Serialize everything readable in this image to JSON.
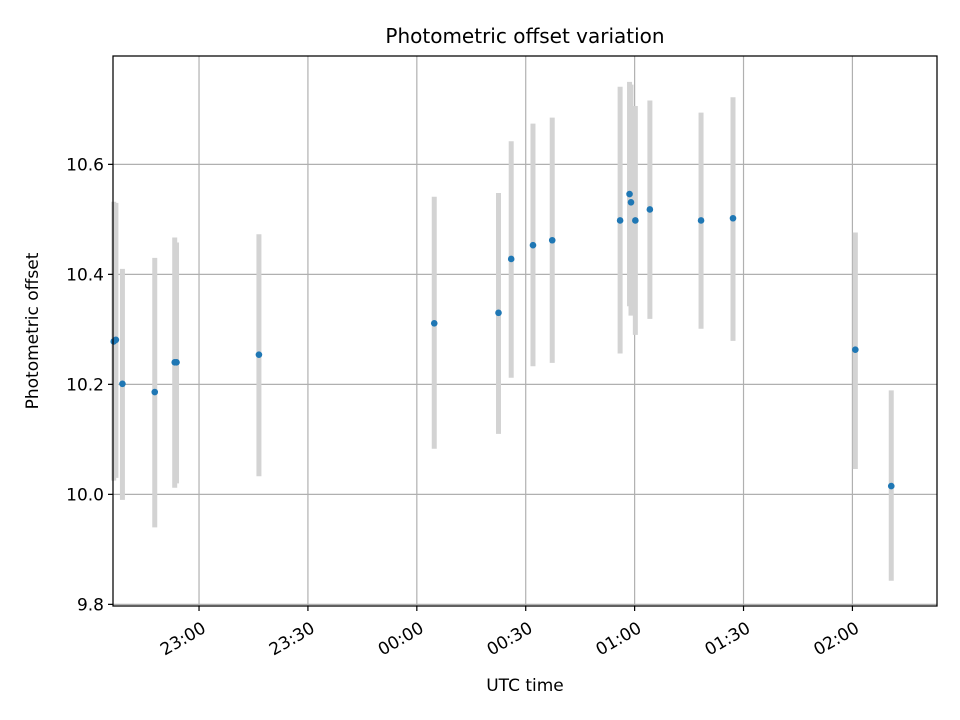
{
  "chart_data": {
    "type": "scatter",
    "title": "Photometric offset variation",
    "xlabel": "UTC time",
    "ylabel": "Photometric offset",
    "x_ticks": [
      {
        "value": 60,
        "label": "23:00"
      },
      {
        "value": 90,
        "label": "23:30"
      },
      {
        "value": 120,
        "label": "00:00"
      },
      {
        "value": 150,
        "label": "00:30"
      },
      {
        "value": 180,
        "label": "01:00"
      },
      {
        "value": 210,
        "label": "01:30"
      },
      {
        "value": 240,
        "label": "02:00"
      }
    ],
    "y_ticks": [
      {
        "value": 9.8,
        "label": "9.8"
      },
      {
        "value": 10.0,
        "label": "10.0"
      },
      {
        "value": 10.2,
        "label": "10.2"
      },
      {
        "value": 10.4,
        "label": "10.4"
      },
      {
        "value": 10.6,
        "label": "10.6"
      }
    ],
    "xlim": [
      36.3,
      263.3
    ],
    "ylim": [
      9.797,
      10.797
    ],
    "grid": true,
    "colors": {
      "point": "#1f77b4",
      "errorbar": "#d3d3d3",
      "grid": "#b0b0b0"
    },
    "points": [
      {
        "x": 36.5,
        "y": 10.278,
        "low": 10.025,
        "high": 10.532
      },
      {
        "x": 37.1,
        "y": 10.281,
        "low": 10.03,
        "high": 10.53
      },
      {
        "x": 38.9,
        "y": 10.201,
        "low": 9.99,
        "high": 10.41
      },
      {
        "x": 47.8,
        "y": 10.186,
        "low": 9.94,
        "high": 10.43
      },
      {
        "x": 53.3,
        "y": 10.24,
        "low": 10.012,
        "high": 10.467
      },
      {
        "x": 53.8,
        "y": 10.24,
        "low": 10.02,
        "high": 10.458
      },
      {
        "x": 76.5,
        "y": 10.254,
        "low": 10.033,
        "high": 10.473
      },
      {
        "x": 124.8,
        "y": 10.311,
        "low": 10.083,
        "high": 10.541
      },
      {
        "x": 142.5,
        "y": 10.33,
        "low": 10.11,
        "high": 10.548
      },
      {
        "x": 146.0,
        "y": 10.428,
        "low": 10.212,
        "high": 10.642
      },
      {
        "x": 152.0,
        "y": 10.453,
        "low": 10.233,
        "high": 10.674
      },
      {
        "x": 157.3,
        "y": 10.462,
        "low": 10.239,
        "high": 10.685
      },
      {
        "x": 176.0,
        "y": 10.498,
        "low": 10.256,
        "high": 10.741
      },
      {
        "x": 178.6,
        "y": 10.546,
        "low": 10.342,
        "high": 10.75
      },
      {
        "x": 179.0,
        "y": 10.531,
        "low": 10.325,
        "high": 10.745
      },
      {
        "x": 180.2,
        "y": 10.498,
        "low": 10.29,
        "high": 10.706
      },
      {
        "x": 184.2,
        "y": 10.518,
        "low": 10.319,
        "high": 10.716
      },
      {
        "x": 198.3,
        "y": 10.498,
        "low": 10.301,
        "high": 10.694
      },
      {
        "x": 207.1,
        "y": 10.502,
        "low": 10.279,
        "high": 10.722
      },
      {
        "x": 240.8,
        "y": 10.263,
        "low": 10.046,
        "high": 10.476
      },
      {
        "x": 250.7,
        "y": 10.015,
        "low": 9.843,
        "high": 10.189
      }
    ]
  }
}
